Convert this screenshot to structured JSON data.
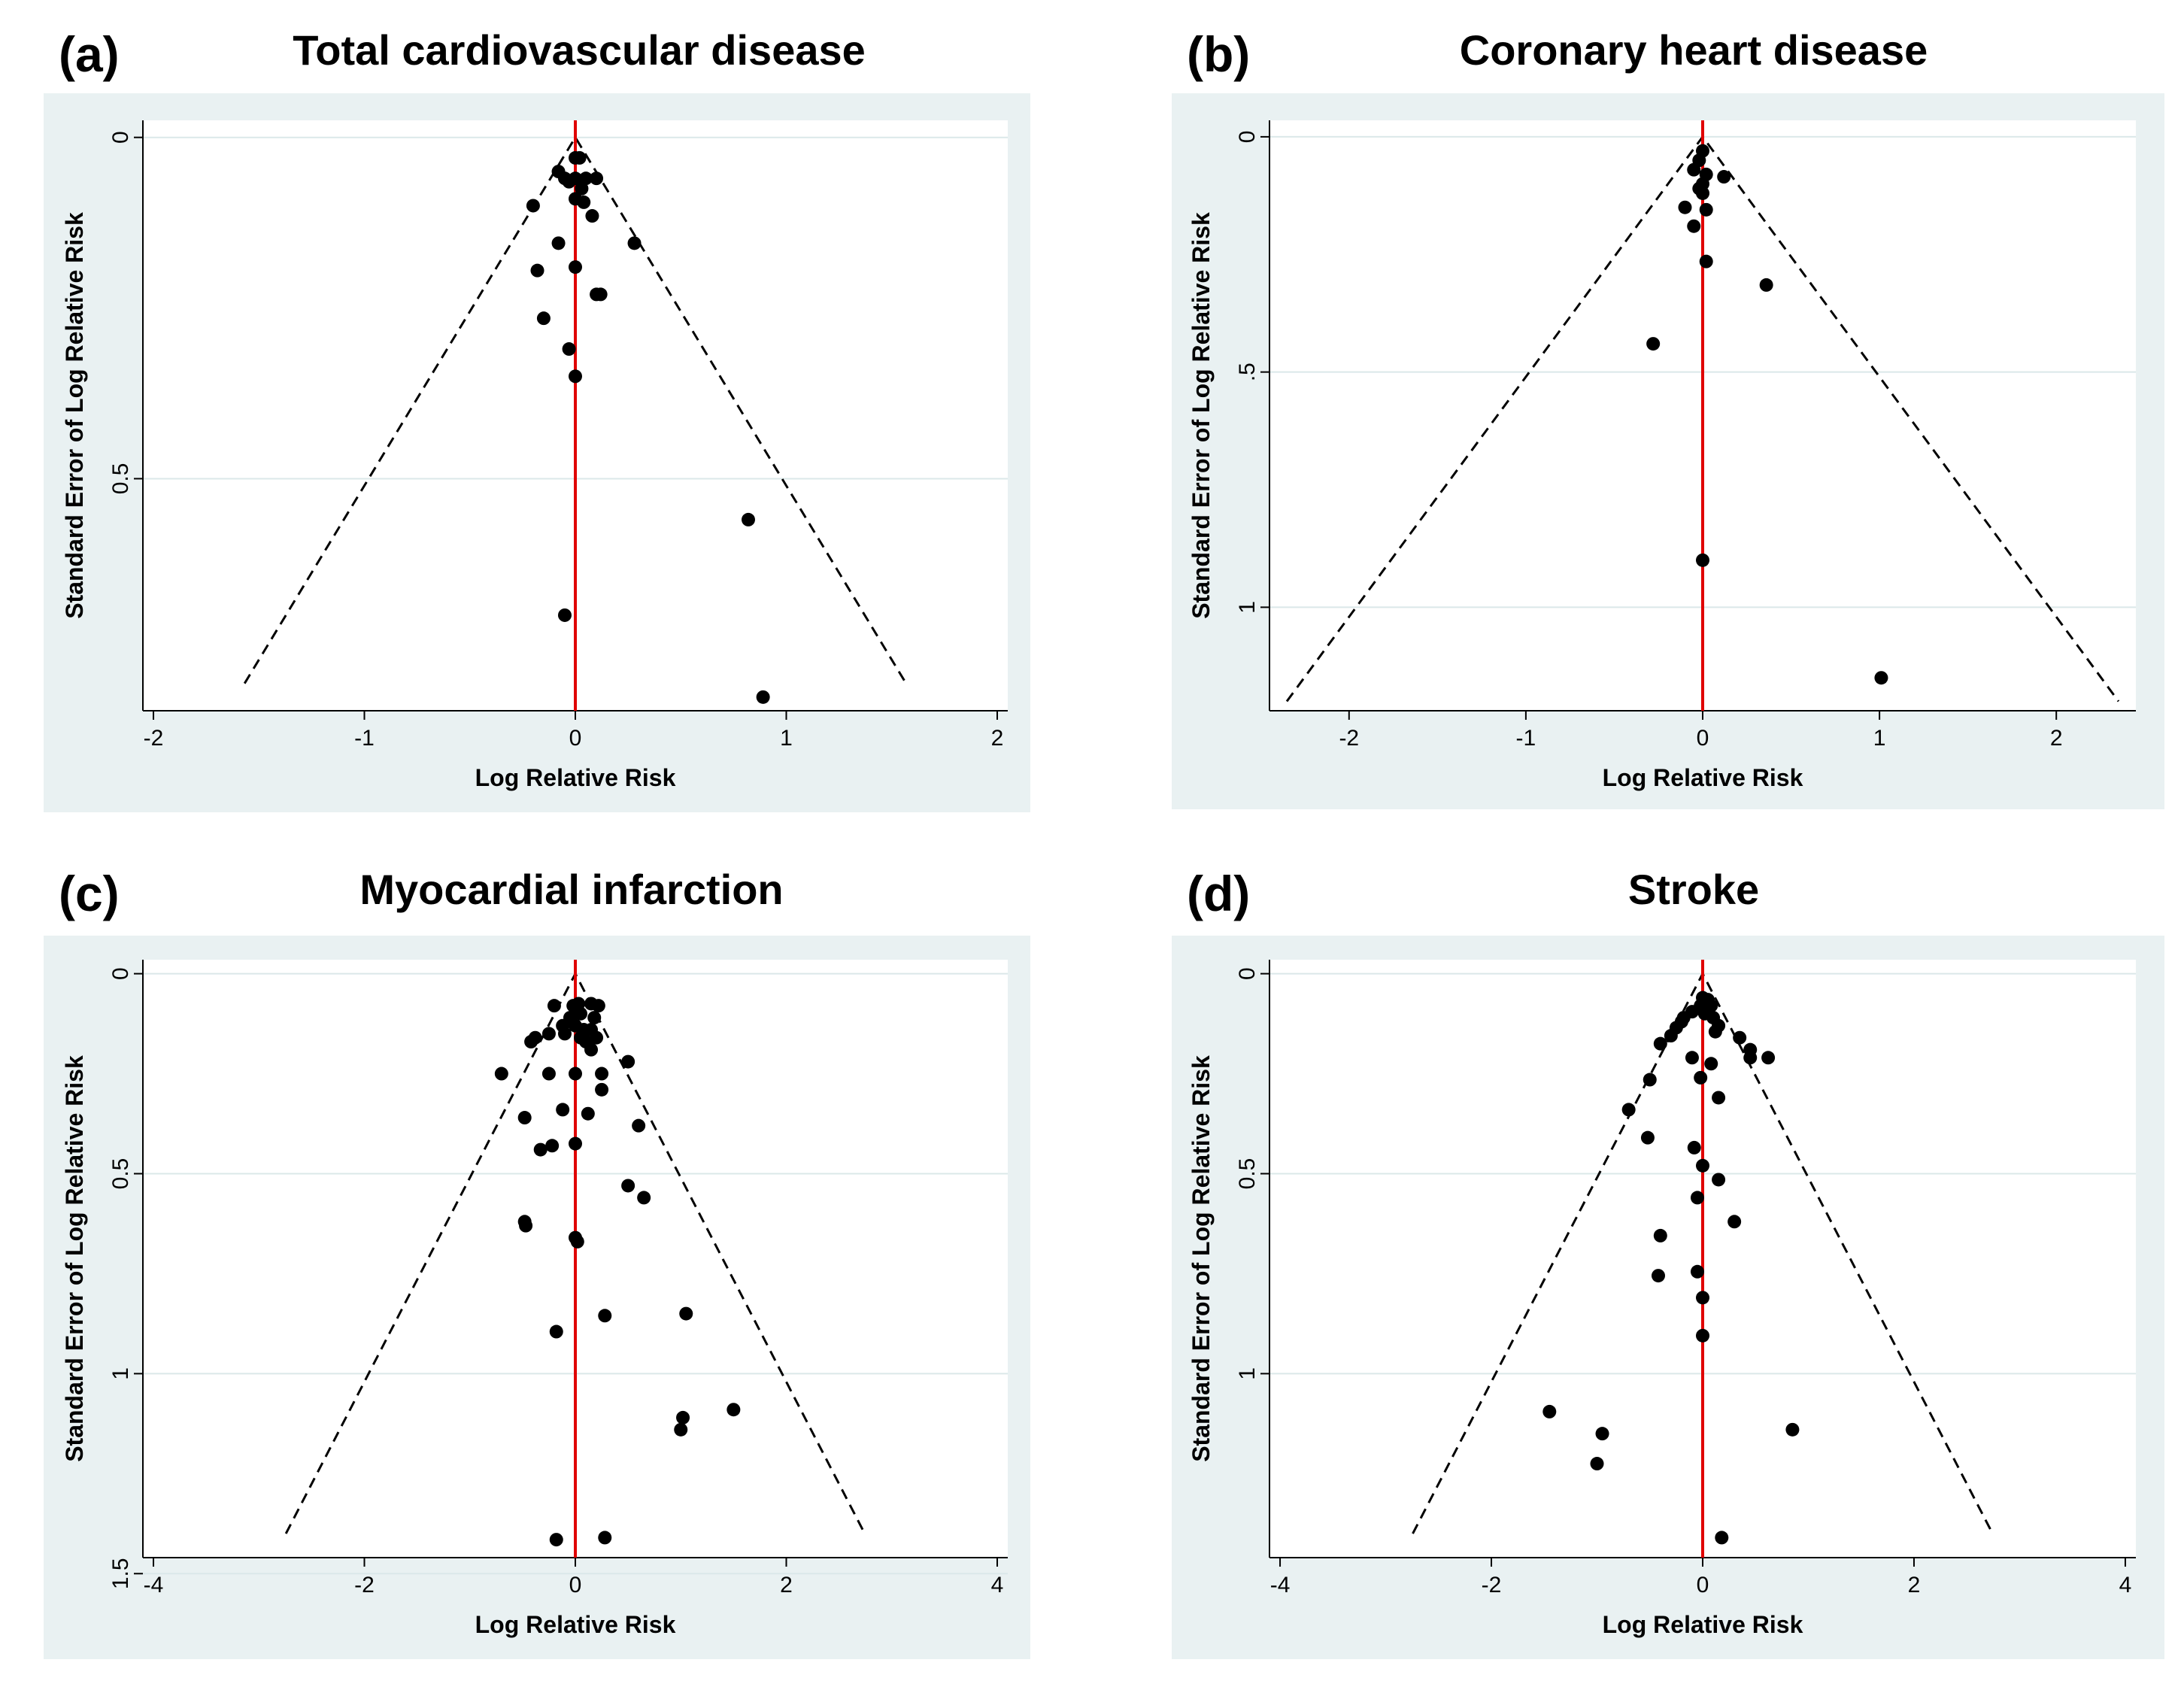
{
  "chart_data": [
    {
      "id": "a",
      "type": "scatter",
      "label": "(a)",
      "title": "Total cardiovascular disease",
      "xlabel": "Log Relative Risk",
      "ylabel": "Standard Error of Log Relative Risk",
      "xlim": [
        -2.05,
        2.05
      ],
      "ylim": [
        -0.025,
        0.84
      ],
      "y_reversed": true,
      "xticks": [
        -2,
        -1,
        0,
        1,
        2
      ],
      "xtick_labels": [
        "-2",
        "-1",
        "0",
        "1",
        "2"
      ],
      "yticks": [
        0,
        0.5
      ],
      "ytick_labels": [
        "0",
        "0.5"
      ],
      "funnel_center": 0,
      "funnel_top_se": 0,
      "funnel_bottom_se": 0.8,
      "pseudo_ci_z": 1.96,
      "points": [
        [
          0.0,
          0.03
        ],
        [
          0.02,
          0.03
        ],
        [
          -0.08,
          0.05
        ],
        [
          -0.05,
          0.06
        ],
        [
          -0.03,
          0.065
        ],
        [
          0.0,
          0.06
        ],
        [
          0.05,
          0.06
        ],
        [
          0.1,
          0.06
        ],
        [
          0.03,
          0.075
        ],
        [
          0.0,
          0.09
        ],
        [
          0.04,
          0.095
        ],
        [
          -0.2,
          0.1
        ],
        [
          0.08,
          0.115
        ],
        [
          -0.08,
          0.155
        ],
        [
          0.28,
          0.155
        ],
        [
          -0.18,
          0.195
        ],
        [
          0.0,
          0.19
        ],
        [
          0.1,
          0.23
        ],
        [
          0.12,
          0.23
        ],
        [
          -0.15,
          0.265
        ],
        [
          -0.03,
          0.31
        ],
        [
          0.0,
          0.35
        ],
        [
          0.82,
          0.56
        ],
        [
          -0.05,
          0.7
        ],
        [
          0.89,
          0.82
        ]
      ]
    },
    {
      "id": "b",
      "type": "scatter",
      "label": "(b)",
      "title": "Coronary heart disease",
      "xlabel": "Log Relative Risk",
      "ylabel": "Standard Error of Log Relative Risk",
      "xlim": [
        -2.45,
        2.45
      ],
      "ylim": [
        -0.035,
        1.22
      ],
      "y_reversed": true,
      "xticks": [
        -2,
        -1,
        0,
        1,
        2
      ],
      "xtick_labels": [
        "-2",
        "-1",
        "0",
        "1",
        "2"
      ],
      "yticks": [
        0,
        0.5,
        1
      ],
      "ytick_labels": [
        "0",
        ".5",
        "1"
      ],
      "funnel_center": 0,
      "funnel_top_se": 0,
      "funnel_bottom_se": 1.2,
      "pseudo_ci_z": 1.96,
      "points": [
        [
          0.0,
          0.03
        ],
        [
          -0.02,
          0.05
        ],
        [
          -0.05,
          0.07
        ],
        [
          0.02,
          0.08
        ],
        [
          0.12,
          0.085
        ],
        [
          0.0,
          0.1
        ],
        [
          -0.02,
          0.11
        ],
        [
          0.0,
          0.12
        ],
        [
          -0.1,
          0.15
        ],
        [
          0.02,
          0.155
        ],
        [
          -0.05,
          0.19
        ],
        [
          0.02,
          0.265
        ],
        [
          0.36,
          0.315
        ],
        [
          -0.28,
          0.44
        ],
        [
          0.0,
          0.9
        ],
        [
          1.01,
          1.15
        ]
      ]
    },
    {
      "id": "c",
      "type": "scatter",
      "label": "(c)",
      "title": "Myocardial infarction",
      "xlabel": "Log Relative Risk",
      "ylabel": "Standard Error of Log Relative Risk",
      "xlim": [
        -4.1,
        4.1
      ],
      "ylim": [
        -0.035,
        1.46
      ],
      "y_reversed": true,
      "xticks": [
        -4,
        -2,
        0,
        2,
        4
      ],
      "xtick_labels": [
        "-4",
        "-2",
        "0",
        "2",
        "4"
      ],
      "yticks": [
        0,
        0.5,
        1,
        1.5
      ],
      "ytick_labels": [
        "0",
        "0.5",
        "1",
        "1.5"
      ],
      "funnel_center": 0,
      "funnel_top_se": 0,
      "funnel_bottom_se": 1.4,
      "pseudo_ci_z": 1.96,
      "points": [
        [
          -0.02,
          0.08
        ],
        [
          0.03,
          0.075
        ],
        [
          -0.2,
          0.08
        ],
        [
          0.15,
          0.075
        ],
        [
          0.22,
          0.08
        ],
        [
          0.05,
          0.1
        ],
        [
          -0.05,
          0.11
        ],
        [
          0.18,
          0.11
        ],
        [
          -0.12,
          0.13
        ],
        [
          0.0,
          0.13
        ],
        [
          0.08,
          0.14
        ],
        [
          0.15,
          0.14
        ],
        [
          -0.25,
          0.15
        ],
        [
          -0.1,
          0.15
        ],
        [
          0.05,
          0.16
        ],
        [
          -0.38,
          0.16
        ],
        [
          0.2,
          0.16
        ],
        [
          -0.42,
          0.17
        ],
        [
          0.1,
          0.17
        ],
        [
          0.15,
          0.19
        ],
        [
          0.5,
          0.22
        ],
        [
          -0.7,
          0.25
        ],
        [
          -0.25,
          0.25
        ],
        [
          0.0,
          0.25
        ],
        [
          0.25,
          0.25
        ],
        [
          0.25,
          0.29
        ],
        [
          -0.12,
          0.34
        ],
        [
          0.12,
          0.35
        ],
        [
          -0.48,
          0.36
        ],
        [
          0.6,
          0.38
        ],
        [
          -0.22,
          0.43
        ],
        [
          0.0,
          0.425
        ],
        [
          -0.33,
          0.44
        ],
        [
          0.5,
          0.53
        ],
        [
          0.65,
          0.56
        ],
        [
          -0.48,
          0.62
        ],
        [
          -0.47,
          0.63
        ],
        [
          0.0,
          0.66
        ],
        [
          0.02,
          0.67
        ],
        [
          1.05,
          0.85
        ],
        [
          0.28,
          0.855
        ],
        [
          -0.18,
          0.895
        ],
        [
          1.5,
          1.09
        ],
        [
          1.02,
          1.11
        ],
        [
          1.0,
          1.14
        ],
        [
          -0.18,
          1.415
        ],
        [
          0.28,
          1.41
        ]
      ]
    },
    {
      "id": "d",
      "type": "scatter",
      "label": "(d)",
      "title": "Stroke",
      "xlabel": "Log Relative Risk",
      "ylabel": "Standard Error of Log Relative Risk",
      "xlim": [
        -4.1,
        4.1
      ],
      "ylim": [
        -0.035,
        1.46
      ],
      "y_reversed": true,
      "xticks": [
        -4,
        -2,
        0,
        2,
        4
      ],
      "xtick_labels": [
        "-4",
        "-2",
        "0",
        "2",
        "4"
      ],
      "yticks": [
        0,
        0.5,
        1
      ],
      "ytick_labels": [
        "0",
        "0.5",
        "1"
      ],
      "funnel_center": 0,
      "funnel_top_se": 0,
      "funnel_bottom_se": 1.4,
      "pseudo_ci_z": 1.96,
      "points": [
        [
          0.0,
          0.06
        ],
        [
          0.05,
          0.065
        ],
        [
          -0.02,
          0.08
        ],
        [
          0.08,
          0.08
        ],
        [
          -0.1,
          0.095
        ],
        [
          0.02,
          0.1
        ],
        [
          -0.18,
          0.11
        ],
        [
          0.1,
          0.11
        ],
        [
          -0.2,
          0.12
        ],
        [
          0.15,
          0.13
        ],
        [
          -0.25,
          0.135
        ],
        [
          0.12,
          0.145
        ],
        [
          -0.3,
          0.155
        ],
        [
          0.35,
          0.16
        ],
        [
          -0.4,
          0.175
        ],
        [
          0.45,
          0.19
        ],
        [
          0.45,
          0.21
        ],
        [
          -0.1,
          0.21
        ],
        [
          0.62,
          0.21
        ],
        [
          0.08,
          0.225
        ],
        [
          -0.5,
          0.265
        ],
        [
          -0.02,
          0.26
        ],
        [
          -0.7,
          0.34
        ],
        [
          0.15,
          0.31
        ],
        [
          -0.52,
          0.41
        ],
        [
          -0.08,
          0.435
        ],
        [
          0.0,
          0.48
        ],
        [
          0.15,
          0.515
        ],
        [
          -0.05,
          0.56
        ],
        [
          0.3,
          0.62
        ],
        [
          -0.4,
          0.655
        ],
        [
          -0.05,
          0.745
        ],
        [
          -0.42,
          0.755
        ],
        [
          0.0,
          0.81
        ],
        [
          0.0,
          0.905
        ],
        [
          -1.45,
          1.095
        ],
        [
          0.85,
          1.14
        ],
        [
          -0.95,
          1.15
        ],
        [
          -1.0,
          1.225
        ],
        [
          0.18,
          1.41
        ]
      ]
    }
  ]
}
